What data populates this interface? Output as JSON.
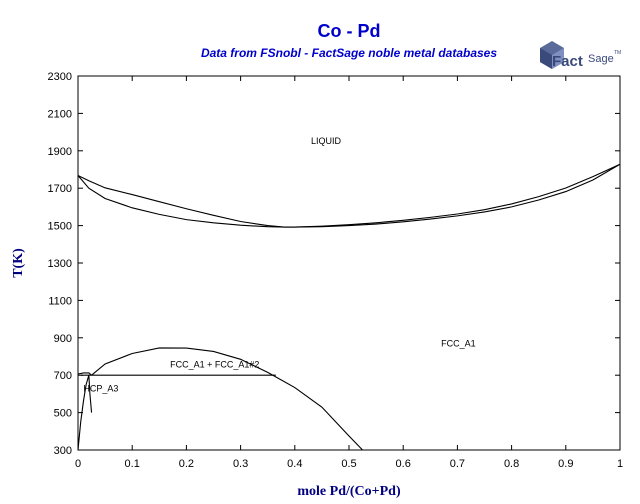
{
  "chart_data": {
    "type": "line",
    "title": "Co - Pd",
    "subtitle": "Data from FSnobl - FactSage noble metal databases",
    "xlabel": "mole Pd/(Co+Pd)",
    "ylabel": "T(K)",
    "xlim": [
      0,
      1
    ],
    "ylim": [
      300,
      2300
    ],
    "x_ticks": [
      "0",
      "0.1",
      "0.2",
      "0.3",
      "0.4",
      "0.5",
      "0.6",
      "0.7",
      "0.8",
      "0.9",
      "1"
    ],
    "x_tick_values": [
      0,
      0.1,
      0.2,
      0.3,
      0.4,
      0.5,
      0.6,
      0.7,
      0.8,
      0.9,
      1
    ],
    "y_ticks": [
      "300",
      "500",
      "700",
      "900",
      "1100",
      "1300",
      "1500",
      "1700",
      "1900",
      "2100",
      "2300"
    ],
    "y_tick_values": [
      300,
      500,
      700,
      900,
      1100,
      1300,
      1500,
      1700,
      1900,
      2100,
      2300
    ],
    "grid": false,
    "annotations": [
      {
        "text": "LIQUID",
        "x": 0.43,
        "y": 1937
      },
      {
        "text": "FCC_A1",
        "x": 0.67,
        "y": 853
      },
      {
        "text": "FCC_A1 + FCC_A1#2",
        "x": 0.17,
        "y": 740
      },
      {
        "text": "HCP_A3",
        "x": 0.01,
        "y": 612
      }
    ],
    "series": [
      {
        "points": [
          [
            0,
            1768
          ],
          [
            0.02,
            1740
          ],
          [
            0.05,
            1702
          ],
          [
            0.1,
            1666
          ],
          [
            0.15,
            1628
          ],
          [
            0.2,
            1590
          ],
          [
            0.25,
            1555
          ],
          [
            0.3,
            1522
          ],
          [
            0.35,
            1500
          ],
          [
            0.38,
            1492
          ],
          [
            0.4,
            1492
          ],
          [
            0.45,
            1497
          ],
          [
            0.5,
            1505
          ],
          [
            0.55,
            1515
          ],
          [
            0.6,
            1528
          ],
          [
            0.65,
            1544
          ],
          [
            0.7,
            1562
          ],
          [
            0.75,
            1585
          ],
          [
            0.8,
            1616
          ],
          [
            0.85,
            1655
          ],
          [
            0.9,
            1701
          ],
          [
            0.95,
            1762
          ],
          [
            1,
            1828
          ]
        ]
      },
      {
        "points": [
          [
            0,
            1768
          ],
          [
            0.02,
            1700
          ],
          [
            0.05,
            1645
          ],
          [
            0.1,
            1595
          ],
          [
            0.15,
            1560
          ],
          [
            0.2,
            1532
          ],
          [
            0.25,
            1515
          ],
          [
            0.3,
            1502
          ],
          [
            0.35,
            1494
          ],
          [
            0.38,
            1492
          ],
          [
            0.4,
            1492
          ],
          [
            0.45,
            1494
          ],
          [
            0.5,
            1500
          ],
          [
            0.55,
            1508
          ],
          [
            0.6,
            1520
          ],
          [
            0.65,
            1535
          ],
          [
            0.7,
            1552
          ],
          [
            0.75,
            1573
          ],
          [
            0.8,
            1600
          ],
          [
            0.85,
            1637
          ],
          [
            0.9,
            1682
          ],
          [
            0.95,
            1744
          ],
          [
            1,
            1828
          ]
        ]
      },
      {
        "points": [
          [
            0.025,
            700
          ],
          [
            0.05,
            760
          ],
          [
            0.1,
            816
          ],
          [
            0.15,
            846
          ],
          [
            0.2,
            845
          ],
          [
            0.25,
            827
          ],
          [
            0.3,
            785
          ],
          [
            0.35,
            715
          ],
          [
            0.4,
            634
          ],
          [
            0.45,
            529
          ],
          [
            0.5,
            375
          ],
          [
            0.525,
            300
          ]
        ]
      },
      {
        "points": [
          [
            0.005,
            700
          ],
          [
            0.365,
            700
          ]
        ]
      },
      {
        "points": [
          [
            0,
            706
          ],
          [
            0.01,
            712
          ],
          [
            0.02,
            712
          ],
          [
            0.025,
            700
          ]
        ]
      },
      {
        "points": [
          [
            0,
            300
          ],
          [
            0.005,
            450
          ],
          [
            0.01,
            560
          ],
          [
            0.015,
            650
          ],
          [
            0.02,
            700
          ]
        ]
      },
      {
        "points": [
          [
            0.02,
            700
          ],
          [
            0.022,
            600
          ],
          [
            0.025,
            500
          ]
        ]
      }
    ]
  },
  "logo": {
    "text": "FactSage",
    "trademark": "TM"
  }
}
